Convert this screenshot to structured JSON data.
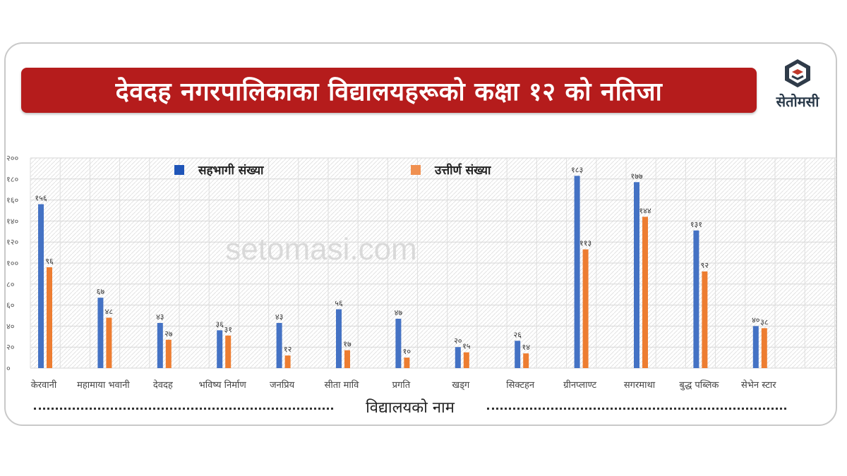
{
  "header": {
    "title": "देवदह नगरपालिकाका विद्यालयहरूको कक्षा १२ को नतिजा",
    "logo_text": "सेतोमसी"
  },
  "watermark": "setomasi.com",
  "colors": {
    "banner": "#b51c1c",
    "series_participants": "#4472c4",
    "series_passed": "#ed7d31"
  },
  "chart_data": {
    "type": "bar",
    "xlabel": "विद्यालयको नाम",
    "ylabel": "",
    "ylim": [
      0,
      200
    ],
    "yticks": [
      "०",
      "२०",
      "४०",
      "६०",
      "८०",
      "१००",
      "१२०",
      "१४०",
      "१६०",
      "१८०",
      "२००"
    ],
    "grid": true,
    "legend_position": "top",
    "categories": [
      "केरवानी",
      "महामाया भवानी",
      "देवदह",
      "भविष्य निर्माण",
      "जनप्रिय",
      "सीता मावि",
      "प्रगति",
      "खड्ग",
      "सिक्टहन",
      "ग्रीनप्लाण्ट",
      "सगरमाथा",
      "बुद्ध पब्लिक",
      "सेभेन स्टार"
    ],
    "series": [
      {
        "name": "सहभागी संख्या",
        "values": [
          156,
          67,
          43,
          36,
          43,
          56,
          47,
          20,
          26,
          183,
          177,
          131,
          40
        ],
        "labels": [
          "१५६",
          "६७",
          "४३",
          "३६",
          "४३",
          "५६",
          "४७",
          "२०",
          "२६",
          "१८३",
          "१७७",
          "१३१",
          "४०"
        ]
      },
      {
        "name": "उत्तीर्ण संख्या",
        "values": [
          96,
          48,
          27,
          31,
          12,
          17,
          10,
          15,
          14,
          113,
          144,
          92,
          38
        ],
        "labels": [
          "९६",
          "४८",
          "२७",
          "३१",
          "१२",
          "१७",
          "१०",
          "१५",
          "१४",
          "११३",
          "१४४",
          "९२",
          "३८"
        ]
      }
    ]
  }
}
